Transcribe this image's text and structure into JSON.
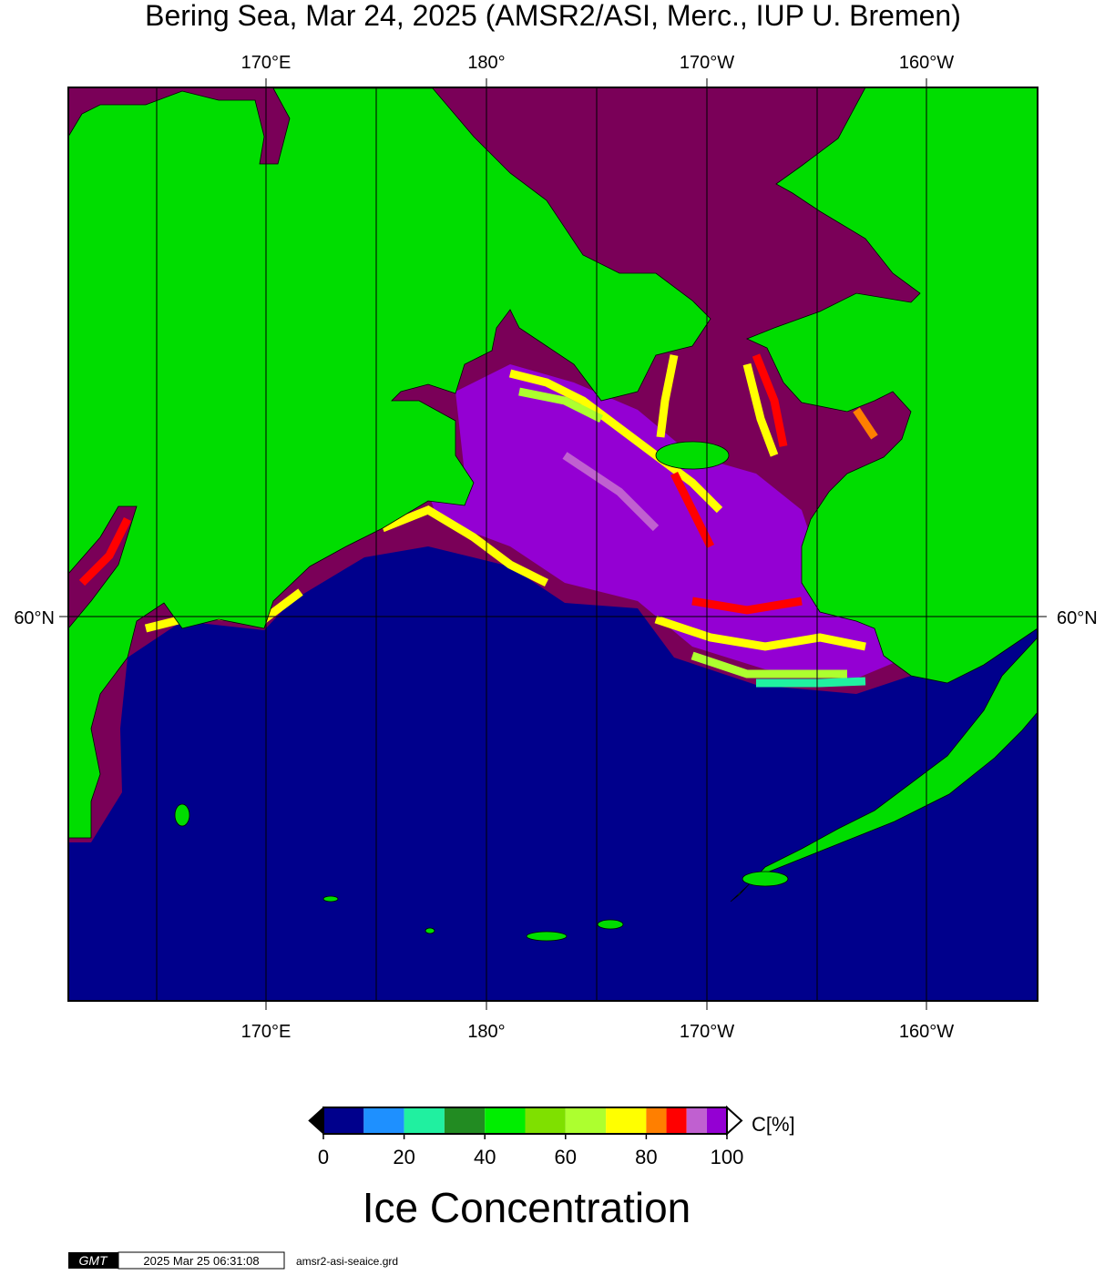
{
  "title": "Bering Sea, Mar 24, 2025 (AMSR2/ASI, Merc., IUP U. Bremen)",
  "lon_labels": [
    "170°E",
    "180°",
    "170°W",
    "160°W"
  ],
  "lat_labels": [
    "60°N"
  ],
  "colorbar": {
    "boundaries": [
      0,
      10,
      20,
      30,
      40,
      50,
      60,
      70,
      80,
      85,
      90,
      95,
      100
    ],
    "colors": [
      "#00008c",
      "#1e90ff",
      "#20f0a0",
      "#228b22",
      "#00ee00",
      "#7fe000",
      "#adff2f",
      "#ffff00",
      "#ff7f00",
      "#ff0000",
      "#c060d0",
      "#9400d3"
    ],
    "ticks": [
      0,
      20,
      40,
      60,
      80,
      100
    ],
    "unit": "C[%]",
    "title": "Ice Concentration"
  },
  "footer": {
    "logo": "GMT",
    "timestamp": "2025 Mar 25 06:31:08",
    "file": "amsr2-asi-seaice.grd"
  }
}
